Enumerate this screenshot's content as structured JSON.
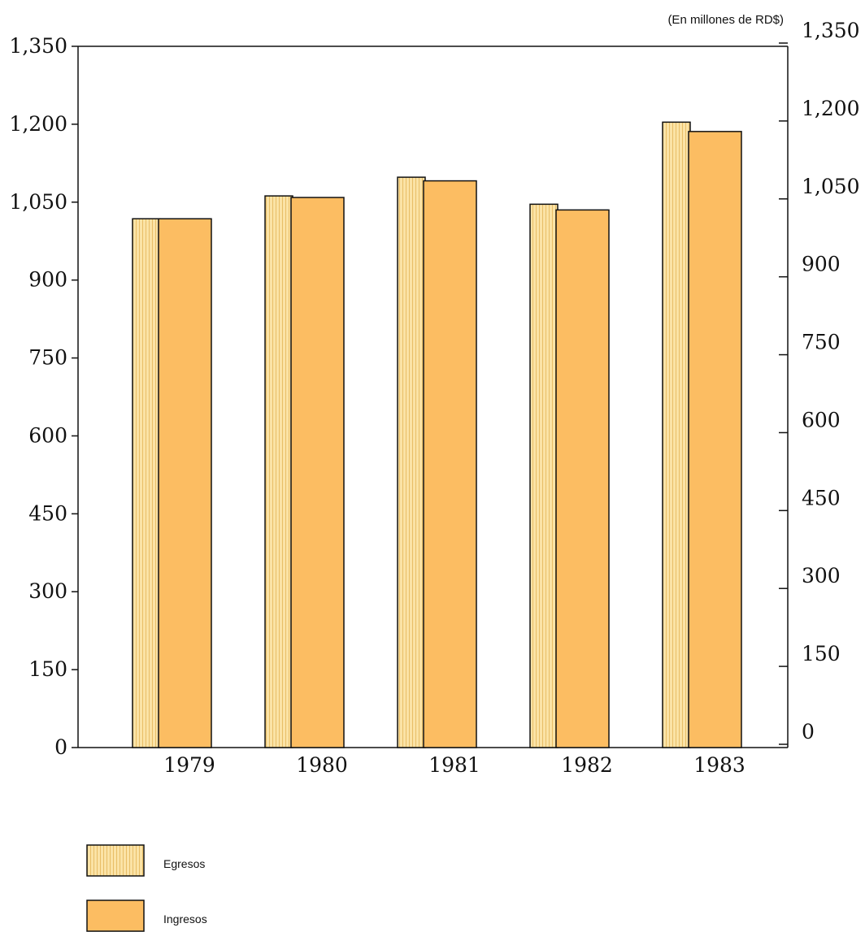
{
  "chart_data": {
    "type": "bar",
    "unit_note": "(En millones de RD$)",
    "categories": [
      "1979",
      "1980",
      "1981",
      "1982",
      "1983"
    ],
    "series": [
      {
        "name": "Egresos",
        "values": [
          1018,
          1062,
          1098,
          1046,
          1204
        ]
      },
      {
        "name": "Ingresos",
        "values": [
          1018,
          1059,
          1091,
          1035,
          1186
        ]
      }
    ],
    "ylim": [
      0,
      1350
    ],
    "yticks": [
      "0",
      "150",
      "300",
      "450",
      "600",
      "750",
      "900",
      "1,050",
      "1,200",
      "1,350"
    ],
    "ytick_values": [
      0,
      150,
      300,
      450,
      600,
      750,
      900,
      1050,
      1200,
      1350
    ],
    "legend_position": "bottom-left",
    "colors": {
      "egresos": "#fbe3a6",
      "egresos_stripe": "#e8be67",
      "ingresos": "#fcbd62"
    }
  }
}
